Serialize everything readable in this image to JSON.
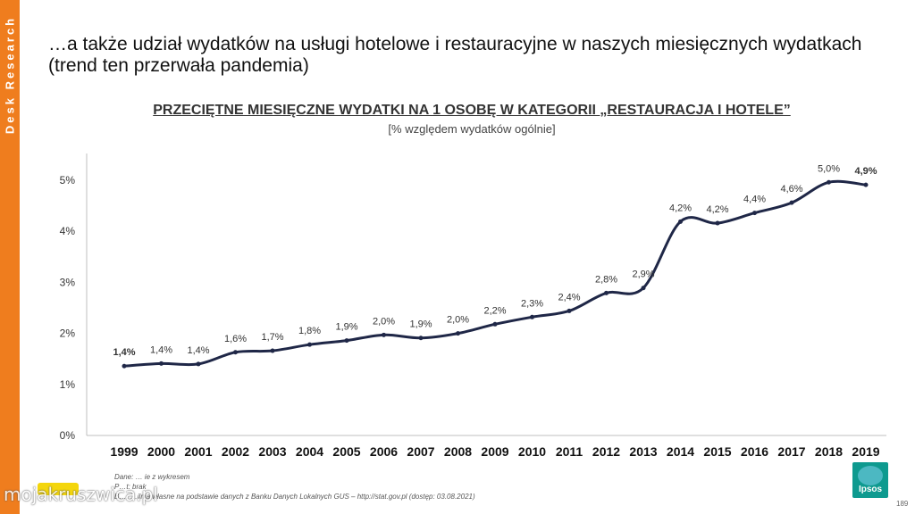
{
  "sidebar": {
    "label": "Desk Research",
    "color": "#ef7d1e"
  },
  "headline": "…a także udział wydatków na usługi hotelowe i restauracyjne w naszych miesięcznych wydatkach (trend ten przerwała pandemia)",
  "chart_data": {
    "type": "line",
    "title": "PRZECIĘTNE MIESIĘCZNE WYDATKI NA 1 OSOBĘ W KATEGORII „RESTAURACJA I HOTELE”",
    "subtitle": "[% względem wydatków ogólnie]",
    "xlabel": "",
    "ylabel": "",
    "categories": [
      "1999",
      "2000",
      "2001",
      "2002",
      "2003",
      "2004",
      "2005",
      "2006",
      "2007",
      "2008",
      "2009",
      "2010",
      "2011",
      "2012",
      "2013",
      "2014",
      "2015",
      "2016",
      "2017",
      "2018",
      "2019"
    ],
    "values": [
      1.36,
      1.41,
      1.4,
      1.63,
      1.66,
      1.78,
      1.86,
      1.97,
      1.91,
      2.0,
      2.18,
      2.32,
      2.44,
      2.79,
      2.89,
      4.19,
      4.16,
      4.36,
      4.56,
      4.96,
      4.91
    ],
    "data_labels": [
      "1,4%",
      "1,4%",
      "1,4%",
      "1,6%",
      "1,7%",
      "1,8%",
      "1,9%",
      "2,0%",
      "1,9%",
      "2,0%",
      "2,2%",
      "2,3%",
      "2,4%",
      "2,8%",
      "2,9%",
      "4,2%",
      "4,2%",
      "4,4%",
      "4,6%",
      "5,0%",
      "4,9%"
    ],
    "y_ticks": [
      "0%",
      "1%",
      "2%",
      "3%",
      "4%",
      "5%"
    ],
    "ylim": [
      0,
      5.5
    ],
    "grid": false,
    "line_color": "#1f2747"
  },
  "footnotes": {
    "line1": "Dane: … ie z wykresem",
    "line2": "P…t: brak",
    "line3": "B…: …ilnia własne na podstawie danych z Banku Danych Lokalnych GUS – http://stat.gov.pl (dostęp: 03.08.2021)"
  },
  "watermark": "mojakruszwica.pl",
  "badge": "",
  "logo": {
    "text": "Ipsos",
    "color": "#0e9a8f"
  },
  "page_number": "189"
}
